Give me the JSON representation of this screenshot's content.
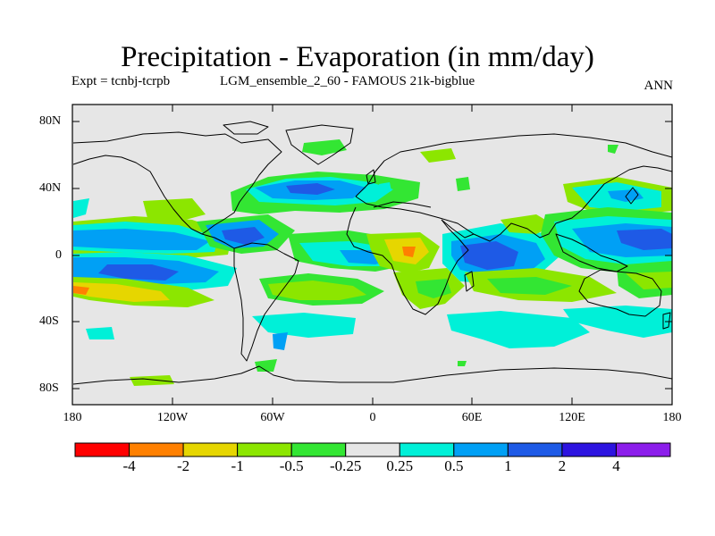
{
  "title": "Precipitation - Evaporation (in mm/day)",
  "subtitle_left": "Expt = tcnbj-tcrpb",
  "subtitle_mid": "LGM_ensemble_2_60 - FAMOUS 21k-bigblue",
  "subtitle_right": "ANN",
  "lat_labels": [
    "80N",
    "40N",
    "0",
    "40S",
    "80S"
  ],
  "lon_labels": [
    "180",
    "120W",
    "60W",
    "0",
    "60E",
    "120E",
    "180"
  ],
  "colorbar": {
    "colors": [
      "#ff0000",
      "#ff8000",
      "#e6d600",
      "#8ce600",
      "#33e633",
      "#e6e6e6",
      "#00f0d8",
      "#00a0f5",
      "#1e5ae6",
      "#2d14e0",
      "#8c1eeb"
    ],
    "labels": [
      "-4",
      "-2",
      "-1",
      "-0.5",
      "-0.25",
      "0.25",
      "0.5",
      "1",
      "2",
      "4"
    ]
  },
  "colors": {
    "background": "#e6e6e6",
    "coast": "#000000"
  }
}
